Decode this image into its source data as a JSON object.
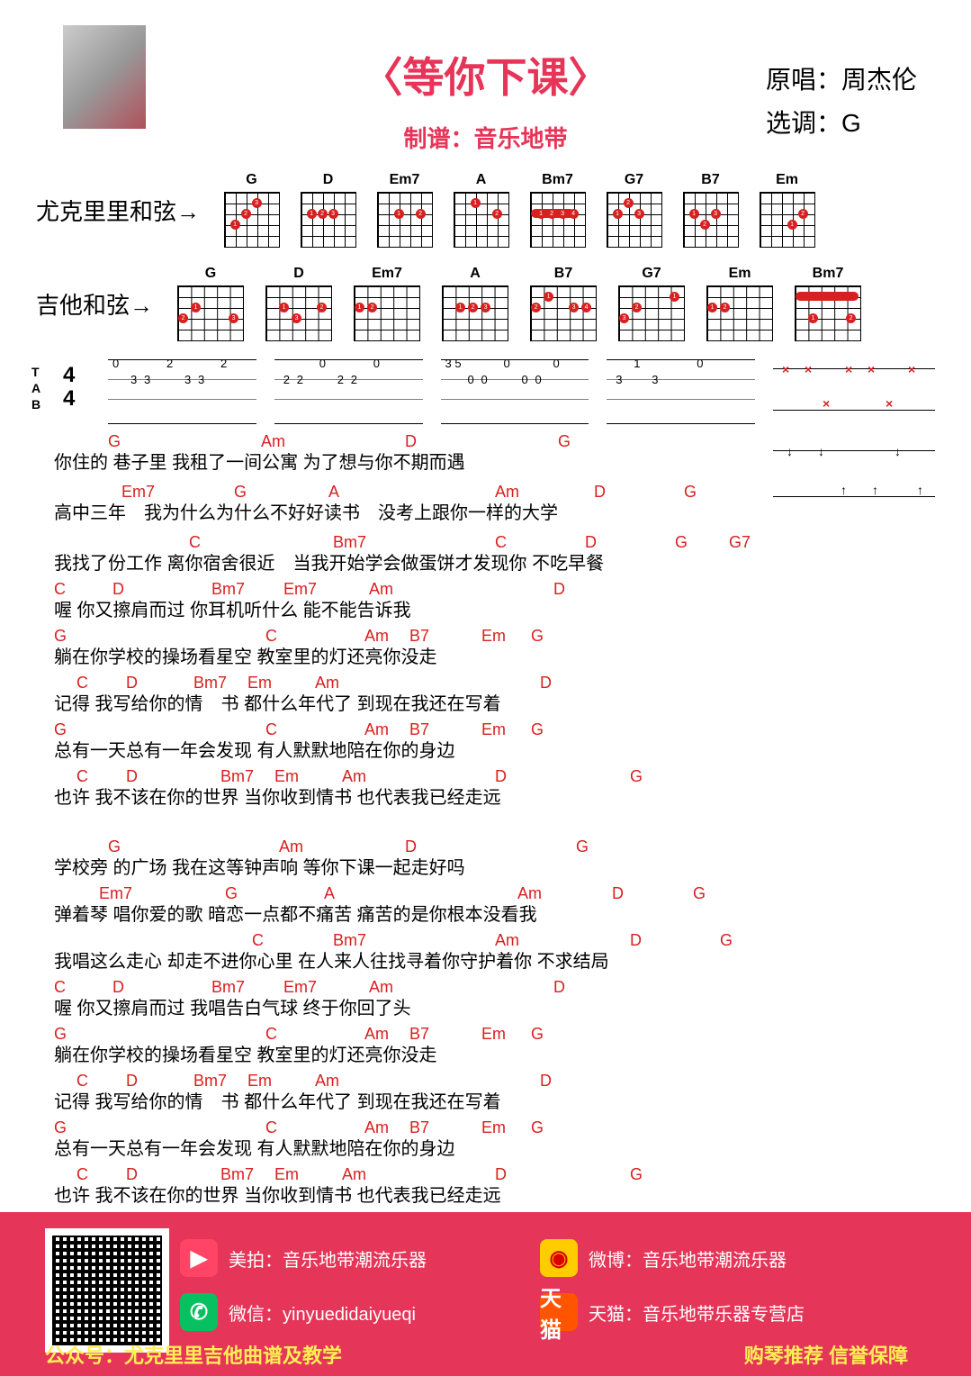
{
  "title": "〈等你下课〉",
  "subtitle": "制谱：音乐地带",
  "info": {
    "original_label": "原唱：",
    "original": "周杰伦",
    "key_label": "选调：",
    "key": "G"
  },
  "chord_rows": {
    "ukulele_label": "尤克里里和弦→",
    "guitar_label": "吉他和弦→",
    "ukulele_chords": [
      "G",
      "D",
      "Em7",
      "A",
      "Bm7",
      "G7",
      "B7",
      "Em"
    ],
    "guitar_chords": [
      "G",
      "D",
      "Em7",
      "A",
      "B7",
      "G7",
      "Em",
      "Bm7"
    ]
  },
  "lyrics": [
    {
      "chords": [
        [
          "G",
          60
        ],
        [
          "Am",
          230
        ],
        [
          "D",
          390
        ],
        [
          "G",
          560
        ]
      ],
      "text": "你住的 巷子里 我租了一间公寓 为了想与你不期而遇"
    },
    {
      "chords": [
        [
          "Em7",
          75
        ],
        [
          "G",
          200
        ],
        [
          "A",
          305
        ],
        [
          "Am",
          490
        ],
        [
          "D",
          600
        ],
        [
          "G",
          700
        ]
      ],
      "text": "高中三年　我为什么为什么不好好读书　没考上跟你一样的大学"
    },
    {
      "chords": [
        [
          "C",
          150
        ],
        [
          "Bm7",
          310
        ],
        [
          "C",
          490
        ],
        [
          "D",
          590
        ],
        [
          "G",
          690
        ],
        [
          "G7",
          750
        ]
      ],
      "text": "我找了份工作 离你宿舍很近　当我开始学会做蛋饼才发现你 不吃早餐"
    },
    {
      "chords": [
        [
          "C",
          0
        ],
        [
          "D",
          65
        ],
        [
          "Bm7",
          175
        ],
        [
          "Em7",
          255
        ],
        [
          "Am",
          350
        ],
        [
          "D",
          555
        ]
      ],
      "text": "喔 你又擦肩而过 你耳机听什么 能不能告诉我"
    },
    {
      "chords": [
        [
          "G",
          0
        ],
        [
          "C",
          235
        ],
        [
          "Am",
          345
        ],
        [
          "B7",
          395
        ],
        [
          "Em",
          475
        ],
        [
          "G",
          530
        ]
      ],
      "text": "躺在你学校的操场看星空 教室里的灯还亮你没走"
    },
    {
      "chords": [
        [
          "C",
          25
        ],
        [
          "D",
          80
        ],
        [
          "Bm7",
          155
        ],
        [
          "Em",
          215
        ],
        [
          "Am",
          290
        ],
        [
          "D",
          540
        ]
      ],
      "text": "记得 我写给你的情　书 都什么年代了 到现在我还在写着"
    },
    {
      "chords": [
        [
          "G",
          0
        ],
        [
          "C",
          235
        ],
        [
          "Am",
          345
        ],
        [
          "B7",
          395
        ],
        [
          "Em",
          475
        ],
        [
          "G",
          530
        ]
      ],
      "text": "总有一天总有一年会发现 有人默默地陪在你的身边"
    },
    {
      "chords": [
        [
          "C",
          25
        ],
        [
          "D",
          80
        ],
        [
          "Bm7",
          185
        ],
        [
          "Em",
          245
        ],
        [
          "Am",
          320
        ],
        [
          "D",
          490
        ],
        [
          "G",
          640
        ]
      ],
      "text": "也许 我不该在你的世界 当你收到情书 也代表我已经走远"
    },
    {
      "chords": [
        [
          "G",
          60
        ],
        [
          "Am",
          250
        ],
        [
          "D",
          390
        ],
        [
          "G",
          580
        ]
      ],
      "text": "学校旁 的广场 我在这等钟声响 等你下课一起走好吗"
    },
    {
      "chords": [
        [
          "Em7",
          50
        ],
        [
          "G",
          190
        ],
        [
          "A",
          300
        ],
        [
          "Am",
          515
        ],
        [
          "D",
          620
        ],
        [
          "G",
          710
        ]
      ],
      "text": "弹着琴 唱你爱的歌 暗恋一点都不痛苦 痛苦的是你根本没看我"
    },
    {
      "chords": [
        [
          "C",
          220
        ],
        [
          "Bm7",
          310
        ],
        [
          "Am",
          490
        ],
        [
          "D",
          640
        ],
        [
          "G",
          740
        ]
      ],
      "text": "我唱这么走心 却走不进你心里 在人来人往找寻着你守护着你 不求结局"
    },
    {
      "chords": [
        [
          "C",
          0
        ],
        [
          "D",
          65
        ],
        [
          "Bm7",
          175
        ],
        [
          "Em7",
          255
        ],
        [
          "Am",
          350
        ],
        [
          "D",
          555
        ]
      ],
      "text": "喔 你又擦肩而过 我唱告白气球 终于你回了头"
    },
    {
      "chords": [
        [
          "G",
          0
        ],
        [
          "C",
          235
        ],
        [
          "Am",
          345
        ],
        [
          "B7",
          395
        ],
        [
          "Em",
          475
        ],
        [
          "G",
          530
        ]
      ],
      "text": "躺在你学校的操场看星空 教室里的灯还亮你没走"
    },
    {
      "chords": [
        [
          "C",
          25
        ],
        [
          "D",
          80
        ],
        [
          "Bm7",
          155
        ],
        [
          "Em",
          215
        ],
        [
          "Am",
          290
        ],
        [
          "D",
          540
        ]
      ],
      "text": "记得 我写给你的情　书 都什么年代了 到现在我还在写着"
    },
    {
      "chords": [
        [
          "G",
          0
        ],
        [
          "C",
          235
        ],
        [
          "Am",
          345
        ],
        [
          "B7",
          395
        ],
        [
          "Em",
          475
        ],
        [
          "G",
          530
        ]
      ],
      "text": "总有一天总有一年会发现 有人默默地陪在你的身边"
    },
    {
      "chords": [
        [
          "C",
          25
        ],
        [
          "D",
          80
        ],
        [
          "Bm7",
          185
        ],
        [
          "Em",
          245
        ],
        [
          "Am",
          320
        ],
        [
          "D",
          490
        ],
        [
          "G",
          640
        ]
      ],
      "text": "也许 我不该在你的世界 当你收到情书 也代表我已经走远"
    }
  ],
  "footer": {
    "meipai_label": "美拍：",
    "meipai": "音乐地带潮流乐器",
    "wechat_label": "微信：",
    "wechat": "yinyuedidaiyueqi",
    "weibo_label": "微博：",
    "weibo": "音乐地带潮流乐器",
    "tmall_label": "天猫：",
    "tmall": "音乐地带乐器专营店",
    "gzh_label": "公众号：",
    "gzh": "尤克里里吉他曲谱及教学",
    "right_bottom": "购琴推荐 信誉保障"
  },
  "colors": {
    "accent": "#e63558",
    "chord_text": "#d92020",
    "footer_bg": "#e53558",
    "footer_highlight": "#ffee55"
  }
}
